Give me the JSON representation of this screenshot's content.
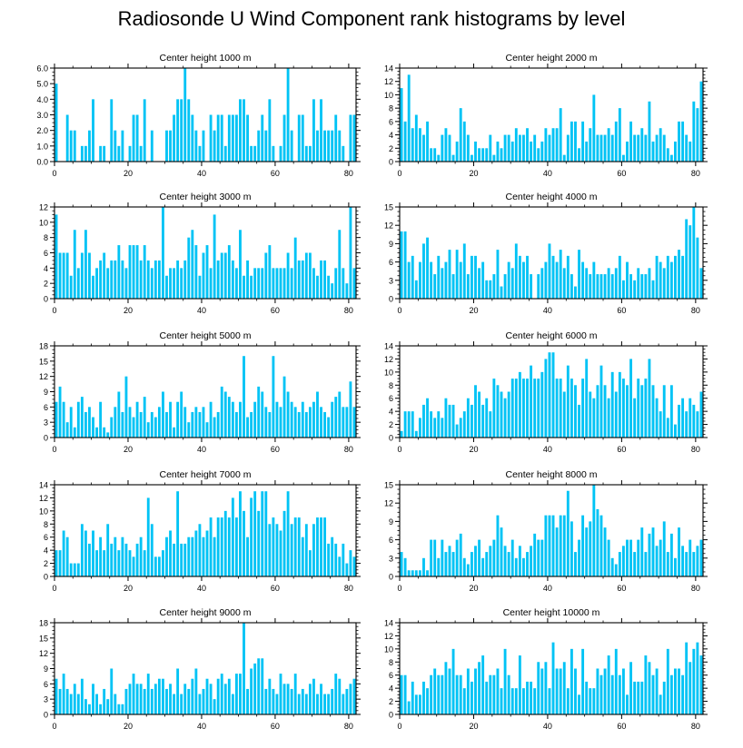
{
  "title": "Radiosonde U Wind Component rank histograms by level",
  "bar_color": "#00c3f5",
  "chart_data": [
    {
      "type": "bar",
      "title": "Center height 1000 m",
      "xlabel": "",
      "ylabel": "",
      "xlim": [
        0,
        82
      ],
      "ylim": [
        0,
        6
      ],
      "yticks": [
        0,
        1,
        2,
        3,
        4,
        5,
        6
      ],
      "ytick_labels": [
        "0.0",
        "1.0",
        "2.0",
        "3.0",
        "4.0",
        "5.0",
        "6.0"
      ],
      "xticks": [
        0,
        20,
        40,
        60,
        80
      ],
      "xtick_labels": [
        "0",
        "20",
        "40",
        "60",
        "80"
      ],
      "values": [
        5,
        0,
        0,
        3,
        2,
        2,
        0,
        1,
        1,
        2,
        4,
        0,
        1,
        1,
        0,
        4,
        2,
        1,
        2,
        0,
        1,
        3,
        3,
        1,
        4,
        0,
        2,
        0,
        0,
        0,
        2,
        2,
        3,
        4,
        4,
        6,
        4,
        3,
        2,
        1,
        2,
        0,
        3,
        2,
        3,
        3,
        1,
        3,
        3,
        3,
        4,
        4,
        3,
        1,
        1,
        2,
        3,
        2,
        4,
        1,
        0,
        1,
        3,
        6,
        2,
        0,
        3,
        3,
        1,
        1,
        4,
        2,
        4,
        2,
        2,
        2,
        3,
        2,
        1,
        0,
        3,
        3
      ]
    },
    {
      "type": "bar",
      "title": "Center height 2000 m",
      "xlabel": "",
      "ylabel": "",
      "xlim": [
        0,
        82
      ],
      "ylim": [
        0,
        14
      ],
      "yticks": [
        0,
        2,
        4,
        6,
        8,
        10,
        12,
        14
      ],
      "ytick_labels": [
        "0",
        "2",
        "4",
        "6",
        "8",
        "10",
        "12",
        "14"
      ],
      "xticks": [
        0,
        20,
        40,
        60,
        80
      ],
      "xtick_labels": [
        "0",
        "20",
        "40",
        "60",
        "80"
      ],
      "values": [
        11,
        6,
        13,
        5,
        7,
        5,
        4,
        6,
        2,
        2,
        1,
        4,
        5,
        4,
        1,
        3,
        8,
        6,
        4,
        1,
        3,
        2,
        2,
        2,
        4,
        1,
        3,
        2,
        4,
        4,
        3,
        5,
        4,
        4,
        5,
        3,
        4,
        2,
        3,
        5,
        4,
        5,
        5,
        8,
        1,
        4,
        6,
        6,
        2,
        6,
        3,
        5,
        10,
        4,
        4,
        4,
        5,
        4,
        6,
        8,
        1,
        3,
        6,
        4,
        4,
        5,
        4,
        9,
        3,
        4,
        5,
        4,
        2,
        1,
        3,
        6,
        6,
        4,
        3,
        9,
        8,
        12
      ]
    },
    {
      "type": "bar",
      "title": "Center height 3000 m",
      "xlabel": "",
      "ylabel": "",
      "xlim": [
        0,
        82
      ],
      "ylim": [
        0,
        12
      ],
      "yticks": [
        0,
        2,
        4,
        6,
        8,
        10,
        12
      ],
      "ytick_labels": [
        "0",
        "2",
        "4",
        "6",
        "8",
        "10",
        "12"
      ],
      "xticks": [
        0,
        20,
        40,
        60,
        80
      ],
      "xtick_labels": [
        "0",
        "20",
        "40",
        "60",
        "80"
      ],
      "values": [
        11,
        6,
        6,
        6,
        3,
        9,
        4,
        6,
        9,
        6,
        3,
        4,
        5,
        6,
        4,
        5,
        5,
        7,
        5,
        4,
        7,
        7,
        7,
        5,
        7,
        5,
        4,
        5,
        5,
        12,
        3,
        4,
        4,
        5,
        4,
        5,
        8,
        9,
        7,
        3,
        6,
        7,
        4,
        11,
        5,
        6,
        6,
        7,
        5,
        4,
        9,
        3,
        5,
        3,
        4,
        4,
        4,
        6,
        7,
        4,
        4,
        4,
        4,
        6,
        4,
        8,
        5,
        5,
        6,
        6,
        4,
        3,
        5,
        5,
        3,
        2,
        4,
        9,
        4,
        2,
        12,
        4
      ]
    },
    {
      "type": "bar",
      "title": "Center height 4000 m",
      "xlabel": "",
      "ylabel": "",
      "xlim": [
        0,
        82
      ],
      "ylim": [
        0,
        15
      ],
      "yticks": [
        0,
        3,
        6,
        9,
        12,
        15
      ],
      "ytick_labels": [
        "0",
        "3",
        "6",
        "9",
        "12",
        "15"
      ],
      "xticks": [
        0,
        20,
        40,
        60,
        80
      ],
      "xtick_labels": [
        "0",
        "20",
        "40",
        "60",
        "80"
      ],
      "values": [
        11,
        11,
        6,
        7,
        3,
        6,
        9,
        10,
        6,
        4,
        7,
        5,
        6,
        8,
        4,
        8,
        6,
        9,
        4,
        7,
        7,
        5,
        6,
        3,
        3,
        4,
        8,
        2,
        4,
        6,
        5,
        9,
        7,
        6,
        7,
        4,
        0,
        4,
        5,
        6,
        9,
        7,
        6,
        8,
        5,
        7,
        4,
        2,
        8,
        6,
        5,
        4,
        6,
        4,
        4,
        4,
        5,
        4,
        5,
        7,
        3,
        6,
        4,
        3,
        5,
        4,
        4,
        5,
        3,
        7,
        6,
        5,
        7,
        6,
        7,
        8,
        7,
        13,
        12,
        15,
        10,
        5
      ]
    },
    {
      "type": "bar",
      "title": "Center height 5000 m",
      "xlabel": "",
      "ylabel": "",
      "xlim": [
        0,
        82
      ],
      "ylim": [
        0,
        18
      ],
      "yticks": [
        0,
        3,
        6,
        9,
        12,
        15,
        18
      ],
      "ytick_labels": [
        "0",
        "3",
        "6",
        "9",
        "12",
        "15",
        "18"
      ],
      "xticks": [
        0,
        20,
        40,
        60,
        80
      ],
      "xtick_labels": [
        "0",
        "20",
        "40",
        "60",
        "80"
      ],
      "values": [
        7,
        10,
        7,
        3,
        6,
        2,
        7,
        8,
        5,
        6,
        4,
        2,
        7,
        2,
        1,
        4,
        6,
        9,
        5,
        12,
        6,
        4,
        7,
        5,
        8,
        3,
        5,
        4,
        6,
        9,
        5,
        7,
        2,
        7,
        9,
        6,
        3,
        5,
        6,
        5,
        6,
        3,
        7,
        4,
        5,
        10,
        9,
        8,
        7,
        5,
        7,
        16,
        4,
        5,
        7,
        10,
        9,
        6,
        5,
        16,
        7,
        6,
        12,
        9,
        7,
        6,
        5,
        7,
        5,
        6,
        7,
        9,
        6,
        5,
        4,
        7,
        8,
        9,
        6,
        6,
        11,
        6
      ]
    },
    {
      "type": "bar",
      "title": "Center height 6000 m",
      "xlabel": "",
      "ylabel": "",
      "xlim": [
        0,
        82
      ],
      "ylim": [
        0,
        14
      ],
      "yticks": [
        0,
        2,
        4,
        6,
        8,
        10,
        12,
        14
      ],
      "ytick_labels": [
        "0",
        "2",
        "4",
        "6",
        "8",
        "10",
        "12",
        "14"
      ],
      "xticks": [
        0,
        20,
        40,
        60,
        80
      ],
      "xtick_labels": [
        "0",
        "20",
        "40",
        "60",
        "80"
      ],
      "values": [
        1,
        4,
        4,
        4,
        1,
        3,
        5,
        6,
        4,
        3,
        4,
        3,
        6,
        5,
        5,
        2,
        3,
        4,
        6,
        5,
        8,
        7,
        5,
        6,
        4,
        9,
        8,
        7,
        6,
        7,
        9,
        9,
        10,
        9,
        9,
        11,
        9,
        9,
        10,
        12,
        13,
        13,
        9,
        9,
        7,
        11,
        9,
        8,
        5,
        9,
        12,
        7,
        6,
        8,
        11,
        8,
        6,
        10,
        7,
        10,
        9,
        8,
        12,
        6,
        9,
        8,
        9,
        12,
        8,
        6,
        4,
        8,
        3,
        8,
        2,
        5,
        6,
        4,
        6,
        5,
        4,
        7
      ]
    },
    {
      "type": "bar",
      "title": "Center height 7000 m",
      "xlabel": "",
      "ylabel": "",
      "xlim": [
        0,
        82
      ],
      "ylim": [
        0,
        14
      ],
      "yticks": [
        0,
        2,
        4,
        6,
        8,
        10,
        12,
        14
      ],
      "ytick_labels": [
        "0",
        "2",
        "4",
        "6",
        "8",
        "10",
        "12",
        "14"
      ],
      "xticks": [
        0,
        20,
        40,
        60,
        80
      ],
      "xtick_labels": [
        "0",
        "20",
        "40",
        "60",
        "80"
      ],
      "values": [
        4,
        4,
        7,
        6,
        2,
        2,
        2,
        8,
        7,
        5,
        7,
        4,
        6,
        4,
        8,
        5,
        6,
        4,
        6,
        5,
        4,
        3,
        5,
        6,
        4,
        12,
        8,
        3,
        3,
        4,
        6,
        7,
        5,
        13,
        5,
        5,
        6,
        6,
        7,
        8,
        6,
        7,
        9,
        6,
        9,
        9,
        10,
        9,
        12,
        9,
        13,
        10,
        6,
        12,
        13,
        10,
        13,
        13,
        8,
        9,
        8,
        7,
        10,
        13,
        8,
        9,
        9,
        6,
        8,
        4,
        8,
        9,
        9,
        9,
        5,
        6,
        5,
        3,
        5,
        2,
        4,
        3
      ]
    },
    {
      "type": "bar",
      "title": "Center height 8000 m",
      "xlabel": "",
      "ylabel": "",
      "xlim": [
        0,
        82
      ],
      "ylim": [
        0,
        15
      ],
      "yticks": [
        0,
        3,
        6,
        9,
        12,
        15
      ],
      "ytick_labels": [
        "0",
        "3",
        "6",
        "9",
        "12",
        "15"
      ],
      "xticks": [
        0,
        20,
        40,
        60,
        80
      ],
      "xtick_labels": [
        "0",
        "20",
        "40",
        "60",
        "80"
      ],
      "values": [
        4,
        3,
        1,
        1,
        1,
        1,
        3,
        1,
        6,
        6,
        3,
        6,
        4,
        5,
        4,
        6,
        7,
        3,
        2,
        4,
        5,
        6,
        3,
        4,
        5,
        6,
        10,
        8,
        5,
        4,
        6,
        3,
        5,
        3,
        4,
        5,
        7,
        6,
        6,
        10,
        10,
        10,
        8,
        10,
        10,
        14,
        9,
        4,
        6,
        10,
        8,
        9,
        15,
        11,
        10,
        8,
        6,
        3,
        2,
        4,
        5,
        6,
        6,
        4,
        6,
        8,
        4,
        7,
        8,
        5,
        6,
        9,
        4,
        7,
        3,
        8,
        5,
        4,
        6,
        4,
        5,
        6
      ]
    },
    {
      "type": "bar",
      "title": "Center height 9000 m",
      "xlabel": "",
      "ylabel": "",
      "xlim": [
        0,
        82
      ],
      "ylim": [
        0,
        18
      ],
      "yticks": [
        0,
        3,
        6,
        9,
        12,
        15,
        18
      ],
      "ytick_labels": [
        "0",
        "3",
        "6",
        "9",
        "12",
        "15",
        "18"
      ],
      "xticks": [
        0,
        20,
        40,
        60,
        80
      ],
      "xtick_labels": [
        "0",
        "20",
        "40",
        "60",
        "80"
      ],
      "values": [
        7,
        5,
        8,
        5,
        4,
        6,
        4,
        7,
        3,
        2,
        6,
        4,
        2,
        5,
        3,
        9,
        4,
        2,
        2,
        5,
        6,
        8,
        6,
        6,
        5,
        8,
        5,
        6,
        7,
        7,
        5,
        6,
        4,
        9,
        4,
        6,
        5,
        7,
        9,
        4,
        5,
        7,
        6,
        3,
        7,
        8,
        6,
        7,
        4,
        8,
        8,
        18,
        5,
        9,
        10,
        11,
        11,
        5,
        7,
        5,
        4,
        8,
        6,
        6,
        5,
        8,
        4,
        5,
        4,
        6,
        7,
        4,
        6,
        4,
        4,
        5,
        8,
        7,
        4,
        5,
        6,
        7
      ]
    },
    {
      "type": "bar",
      "title": "Center height 10000 m",
      "xlabel": "",
      "ylabel": "",
      "xlim": [
        0,
        82
      ],
      "ylim": [
        0,
        14
      ],
      "yticks": [
        0,
        2,
        4,
        6,
        8,
        10,
        12,
        14
      ],
      "ytick_labels": [
        "0",
        "2",
        "4",
        "6",
        "8",
        "10",
        "12",
        "14"
      ],
      "xticks": [
        0,
        20,
        40,
        60,
        80
      ],
      "xtick_labels": [
        "0",
        "20",
        "40",
        "60",
        "80"
      ],
      "values": [
        6,
        6,
        2,
        5,
        3,
        3,
        5,
        4,
        6,
        7,
        6,
        6,
        8,
        7,
        10,
        6,
        6,
        4,
        7,
        5,
        7,
        8,
        9,
        5,
        6,
        6,
        7,
        4,
        10,
        6,
        4,
        4,
        9,
        4,
        5,
        5,
        4,
        8,
        7,
        8,
        4,
        11,
        7,
        7,
        8,
        4,
        10,
        7,
        3,
        10,
        5,
        4,
        4,
        7,
        6,
        7,
        9,
        6,
        10,
        6,
        7,
        3,
        8,
        5,
        5,
        5,
        9,
        8,
        6,
        7,
        3,
        5,
        10,
        6,
        7,
        7,
        6,
        11,
        8,
        10,
        11,
        9
      ]
    }
  ]
}
